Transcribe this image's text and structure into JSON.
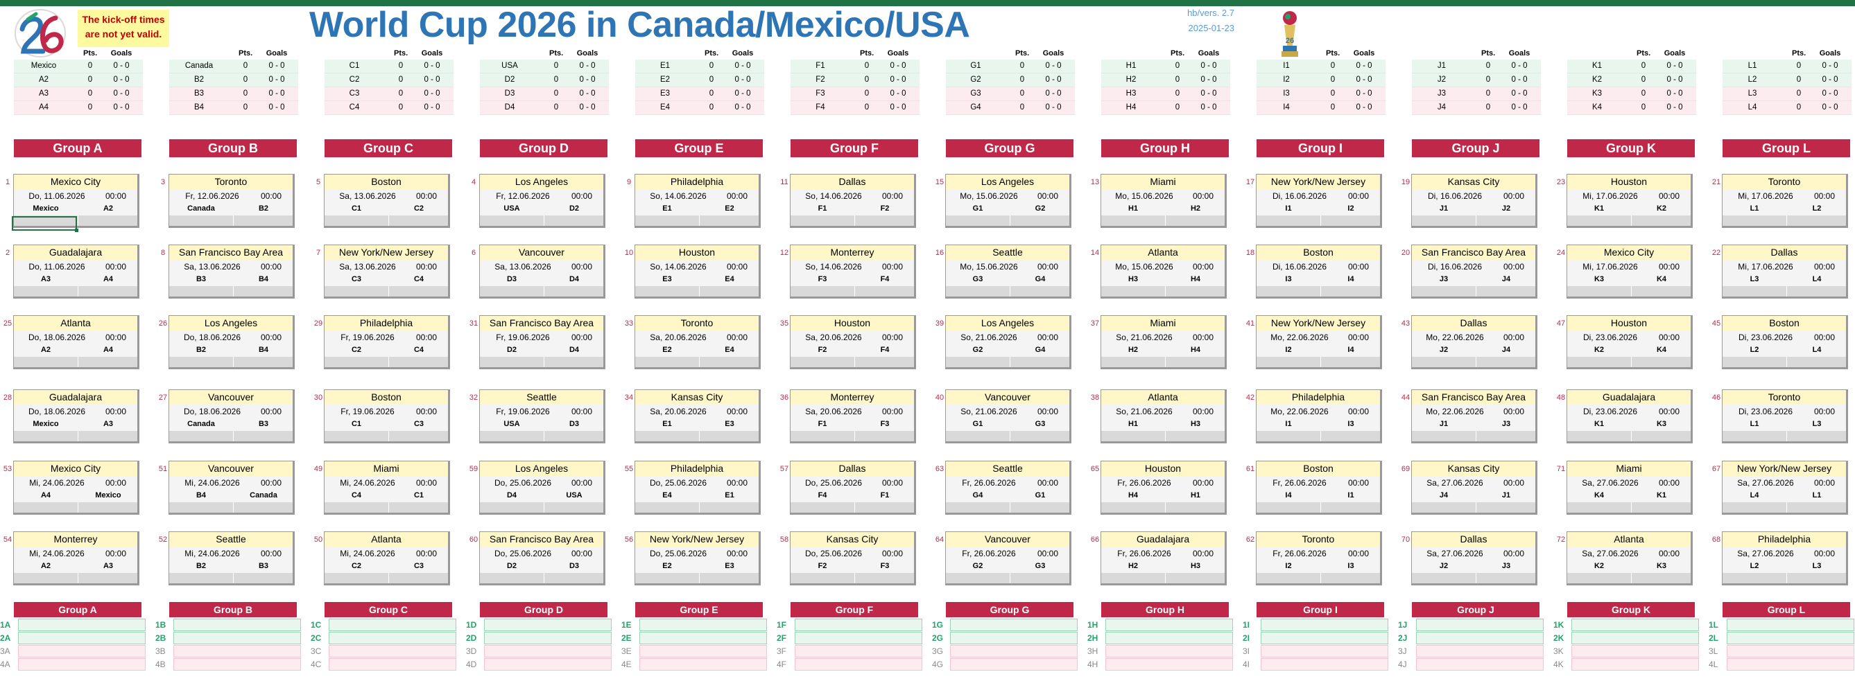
{
  "header": {
    "title": "World Cup 2026 in Canada/Mexico/USA",
    "note_line1": "The kick-off times",
    "note_line2": "are not yet valid.",
    "version": "hb/vers. 2.7",
    "version_date": "2025-01-23",
    "logo_icon": "wc26-logo-icon",
    "trophy_icon": "trophy-icon"
  },
  "columns": {
    "pts": "Pts.",
    "goals": "Goals"
  },
  "colors": {
    "accent": "#c0284a",
    "title": "#2e75b6",
    "venue_bg": "#fff7c7",
    "qualified": "#22a36b"
  },
  "groups": [
    {
      "name": "Group A",
      "teams": [
        "Mexico",
        "A2",
        "A3",
        "A4"
      ],
      "pts": [
        "0",
        "0",
        "0",
        "0"
      ],
      "goals": [
        "0 - 0",
        "0 - 0",
        "0 - 0",
        "0 - 0"
      ],
      "matches": [
        {
          "num": "1",
          "venue": "Mexico City",
          "date": "Do, 11.06.2026",
          "time": "00:00",
          "home": "Mexico",
          "away": "A2"
        },
        {
          "num": "2",
          "venue": "Guadalajara",
          "date": "Do, 11.06.2026",
          "time": "00:00",
          "home": "A3",
          "away": "A4"
        },
        {
          "num": "25",
          "venue": "Atlanta",
          "date": "Do, 18.06.2026",
          "time": "00:00",
          "home": "A2",
          "away": "A4"
        },
        {
          "num": "28",
          "venue": "Guadalajara",
          "date": "Do, 18.06.2026",
          "time": "00:00",
          "home": "Mexico",
          "away": "A3"
        },
        {
          "num": "53",
          "venue": "Mexico City",
          "date": "Mi, 24.06.2026",
          "time": "00:00",
          "home": "A4",
          "away": "Mexico"
        },
        {
          "num": "54",
          "venue": "Monterrey",
          "date": "Mi, 24.06.2026",
          "time": "00:00",
          "home": "A2",
          "away": "A3"
        }
      ],
      "final": [
        "1A",
        "2A",
        "3A",
        "4A"
      ]
    },
    {
      "name": "Group B",
      "teams": [
        "Canada",
        "B2",
        "B3",
        "B4"
      ],
      "pts": [
        "0",
        "0",
        "0",
        "0"
      ],
      "goals": [
        "0 - 0",
        "0 - 0",
        "0 - 0",
        "0 - 0"
      ],
      "matches": [
        {
          "num": "3",
          "venue": "Toronto",
          "date": "Fr, 12.06.2026",
          "time": "00:00",
          "home": "Canada",
          "away": "B2"
        },
        {
          "num": "8",
          "venue": "San Francisco Bay Area",
          "date": "Sa, 13.06.2026",
          "time": "00:00",
          "home": "B3",
          "away": "B4"
        },
        {
          "num": "26",
          "venue": "Los Angeles",
          "date": "Do, 18.06.2026",
          "time": "00:00",
          "home": "B2",
          "away": "B4"
        },
        {
          "num": "27",
          "venue": "Vancouver",
          "date": "Do, 18.06.2026",
          "time": "00:00",
          "home": "Canada",
          "away": "B3"
        },
        {
          "num": "51",
          "venue": "Vancouver",
          "date": "Mi, 24.06.2026",
          "time": "00:00",
          "home": "B4",
          "away": "Canada"
        },
        {
          "num": "52",
          "venue": "Seattle",
          "date": "Mi, 24.06.2026",
          "time": "00:00",
          "home": "B2",
          "away": "B3"
        }
      ],
      "final": [
        "1B",
        "2B",
        "3B",
        "4B"
      ]
    },
    {
      "name": "Group C",
      "teams": [
        "C1",
        "C2",
        "C3",
        "C4"
      ],
      "pts": [
        "0",
        "0",
        "0",
        "0"
      ],
      "goals": [
        "0 - 0",
        "0 - 0",
        "0 - 0",
        "0 - 0"
      ],
      "matches": [
        {
          "num": "5",
          "venue": "Boston",
          "date": "Sa, 13.06.2026",
          "time": "00:00",
          "home": "C1",
          "away": "C2"
        },
        {
          "num": "7",
          "venue": "New York/New Jersey",
          "date": "Sa, 13.06.2026",
          "time": "00:00",
          "home": "C3",
          "away": "C4"
        },
        {
          "num": "29",
          "venue": "Philadelphia",
          "date": "Fr, 19.06.2026",
          "time": "00:00",
          "home": "C2",
          "away": "C4"
        },
        {
          "num": "30",
          "venue": "Boston",
          "date": "Fr, 19.06.2026",
          "time": "00:00",
          "home": "C1",
          "away": "C3"
        },
        {
          "num": "49",
          "venue": "Miami",
          "date": "Mi, 24.06.2026",
          "time": "00:00",
          "home": "C4",
          "away": "C1"
        },
        {
          "num": "50",
          "venue": "Atlanta",
          "date": "Mi, 24.06.2026",
          "time": "00:00",
          "home": "C2",
          "away": "C3"
        }
      ],
      "final": [
        "1C",
        "2C",
        "3C",
        "4C"
      ]
    },
    {
      "name": "Group D",
      "teams": [
        "USA",
        "D2",
        "D3",
        "D4"
      ],
      "pts": [
        "0",
        "0",
        "0",
        "0"
      ],
      "goals": [
        "0 - 0",
        "0 - 0",
        "0 - 0",
        "0 - 0"
      ],
      "matches": [
        {
          "num": "4",
          "venue": "Los Angeles",
          "date": "Fr, 12.06.2026",
          "time": "00:00",
          "home": "USA",
          "away": "D2"
        },
        {
          "num": "6",
          "venue": "Vancouver",
          "date": "Sa, 13.06.2026",
          "time": "00:00",
          "home": "D3",
          "away": "D4"
        },
        {
          "num": "31",
          "venue": "San Francisco Bay Area",
          "date": "Fr, 19.06.2026",
          "time": "00:00",
          "home": "D2",
          "away": "D4"
        },
        {
          "num": "32",
          "venue": "Seattle",
          "date": "Fr, 19.06.2026",
          "time": "00:00",
          "home": "USA",
          "away": "D3"
        },
        {
          "num": "59",
          "venue": "Los Angeles",
          "date": "Do, 25.06.2026",
          "time": "00:00",
          "home": "D4",
          "away": "USA"
        },
        {
          "num": "60",
          "venue": "San Francisco Bay Area",
          "date": "Do, 25.06.2026",
          "time": "00:00",
          "home": "D2",
          "away": "D3"
        }
      ],
      "final": [
        "1D",
        "2D",
        "3D",
        "4D"
      ]
    },
    {
      "name": "Group E",
      "teams": [
        "E1",
        "E2",
        "E3",
        "E4"
      ],
      "pts": [
        "0",
        "0",
        "0",
        "0"
      ],
      "goals": [
        "0 - 0",
        "0 - 0",
        "0 - 0",
        "0 - 0"
      ],
      "matches": [
        {
          "num": "9",
          "venue": "Philadelphia",
          "date": "So, 14.06.2026",
          "time": "00:00",
          "home": "E1",
          "away": "E2"
        },
        {
          "num": "10",
          "venue": "Houston",
          "date": "So, 14.06.2026",
          "time": "00:00",
          "home": "E3",
          "away": "E4"
        },
        {
          "num": "33",
          "venue": "Toronto",
          "date": "Sa, 20.06.2026",
          "time": "00:00",
          "home": "E2",
          "away": "E4"
        },
        {
          "num": "34",
          "venue": "Kansas City",
          "date": "Sa, 20.06.2026",
          "time": "00:00",
          "home": "E1",
          "away": "E3"
        },
        {
          "num": "55",
          "venue": "Philadelphia",
          "date": "Do, 25.06.2026",
          "time": "00:00",
          "home": "E4",
          "away": "E1"
        },
        {
          "num": "56",
          "venue": "New York/New Jersey",
          "date": "Do, 25.06.2026",
          "time": "00:00",
          "home": "E2",
          "away": "E3"
        }
      ],
      "final": [
        "1E",
        "2E",
        "3E",
        "4E"
      ]
    },
    {
      "name": "Group F",
      "teams": [
        "F1",
        "F2",
        "F3",
        "F4"
      ],
      "pts": [
        "0",
        "0",
        "0",
        "0"
      ],
      "goals": [
        "0 - 0",
        "0 - 0",
        "0 - 0",
        "0 - 0"
      ],
      "matches": [
        {
          "num": "11",
          "venue": "Dallas",
          "date": "So, 14.06.2026",
          "time": "00:00",
          "home": "F1",
          "away": "F2"
        },
        {
          "num": "12",
          "venue": "Monterrey",
          "date": "So, 14.06.2026",
          "time": "00:00",
          "home": "F3",
          "away": "F4"
        },
        {
          "num": "35",
          "venue": "Houston",
          "date": "Sa, 20.06.2026",
          "time": "00:00",
          "home": "F2",
          "away": "F4"
        },
        {
          "num": "36",
          "venue": "Monterrey",
          "date": "Sa, 20.06.2026",
          "time": "00:00",
          "home": "F1",
          "away": "F3"
        },
        {
          "num": "57",
          "venue": "Dallas",
          "date": "Do, 25.06.2026",
          "time": "00:00",
          "home": "F4",
          "away": "F1"
        },
        {
          "num": "58",
          "venue": "Kansas City",
          "date": "Do, 25.06.2026",
          "time": "00:00",
          "home": "F2",
          "away": "F3"
        }
      ],
      "final": [
        "1F",
        "2F",
        "3F",
        "4F"
      ]
    },
    {
      "name": "Group G",
      "teams": [
        "G1",
        "G2",
        "G3",
        "G4"
      ],
      "pts": [
        "0",
        "0",
        "0",
        "0"
      ],
      "goals": [
        "0 - 0",
        "0 - 0",
        "0 - 0",
        "0 - 0"
      ],
      "matches": [
        {
          "num": "15",
          "venue": "Los Angeles",
          "date": "Mo, 15.06.2026",
          "time": "00:00",
          "home": "G1",
          "away": "G2"
        },
        {
          "num": "16",
          "venue": "Seattle",
          "date": "Mo, 15.06.2026",
          "time": "00:00",
          "home": "G3",
          "away": "G4"
        },
        {
          "num": "39",
          "venue": "Los Angeles",
          "date": "So, 21.06.2026",
          "time": "00:00",
          "home": "G2",
          "away": "G4"
        },
        {
          "num": "40",
          "venue": "Vancouver",
          "date": "So, 21.06.2026",
          "time": "00:00",
          "home": "G1",
          "away": "G3"
        },
        {
          "num": "63",
          "venue": "Seattle",
          "date": "Fr, 26.06.2026",
          "time": "00:00",
          "home": "G4",
          "away": "G1"
        },
        {
          "num": "64",
          "venue": "Vancouver",
          "date": "Fr, 26.06.2026",
          "time": "00:00",
          "home": "G2",
          "away": "G3"
        }
      ],
      "final": [
        "1G",
        "2G",
        "3G",
        "4G"
      ]
    },
    {
      "name": "Group H",
      "teams": [
        "H1",
        "H2",
        "H3",
        "H4"
      ],
      "pts": [
        "0",
        "0",
        "0",
        "0"
      ],
      "goals": [
        "0 - 0",
        "0 - 0",
        "0 - 0",
        "0 - 0"
      ],
      "matches": [
        {
          "num": "13",
          "venue": "Miami",
          "date": "Mo, 15.06.2026",
          "time": "00:00",
          "home": "H1",
          "away": "H2"
        },
        {
          "num": "14",
          "venue": "Atlanta",
          "date": "Mo, 15.06.2026",
          "time": "00:00",
          "home": "H3",
          "away": "H4"
        },
        {
          "num": "37",
          "venue": "Miami",
          "date": "So, 21.06.2026",
          "time": "00:00",
          "home": "H2",
          "away": "H4"
        },
        {
          "num": "38",
          "venue": "Atlanta",
          "date": "So, 21.06.2026",
          "time": "00:00",
          "home": "H1",
          "away": "H3"
        },
        {
          "num": "65",
          "venue": "Houston",
          "date": "Fr, 26.06.2026",
          "time": "00:00",
          "home": "H4",
          "away": "H1"
        },
        {
          "num": "66",
          "venue": "Guadalajara",
          "date": "Fr, 26.06.2026",
          "time": "00:00",
          "home": "H2",
          "away": "H3"
        }
      ],
      "final": [
        "1H",
        "2H",
        "3H",
        "4H"
      ]
    },
    {
      "name": "Group I",
      "teams": [
        "I1",
        "I2",
        "I3",
        "I4"
      ],
      "pts": [
        "0",
        "0",
        "0",
        "0"
      ],
      "goals": [
        "0 - 0",
        "0 - 0",
        "0 - 0",
        "0 - 0"
      ],
      "matches": [
        {
          "num": "17",
          "venue": "New York/New Jersey",
          "date": "Di, 16.06.2026",
          "time": "00:00",
          "home": "I1",
          "away": "I2"
        },
        {
          "num": "18",
          "venue": "Boston",
          "date": "Di, 16.06.2026",
          "time": "00:00",
          "home": "I3",
          "away": "I4"
        },
        {
          "num": "41",
          "venue": "New York/New Jersey",
          "date": "Mo, 22.06.2026",
          "time": "00:00",
          "home": "I2",
          "away": "I4"
        },
        {
          "num": "42",
          "venue": "Philadelphia",
          "date": "Mo, 22.06.2026",
          "time": "00:00",
          "home": "I1",
          "away": "I3"
        },
        {
          "num": "61",
          "venue": "Boston",
          "date": "Fr, 26.06.2026",
          "time": "00:00",
          "home": "I4",
          "away": "I1"
        },
        {
          "num": "62",
          "venue": "Toronto",
          "date": "Fr, 26.06.2026",
          "time": "00:00",
          "home": "I2",
          "away": "I3"
        }
      ],
      "final": [
        "1I",
        "2I",
        "3I",
        "4I"
      ]
    },
    {
      "name": "Group J",
      "teams": [
        "J1",
        "J2",
        "J3",
        "J4"
      ],
      "pts": [
        "0",
        "0",
        "0",
        "0"
      ],
      "goals": [
        "0 - 0",
        "0 - 0",
        "0 - 0",
        "0 - 0"
      ],
      "matches": [
        {
          "num": "19",
          "venue": "Kansas City",
          "date": "Di, 16.06.2026",
          "time": "00:00",
          "home": "J1",
          "away": "J2"
        },
        {
          "num": "20",
          "venue": "San Francisco Bay Area",
          "date": "Di, 16.06.2026",
          "time": "00:00",
          "home": "J3",
          "away": "J4"
        },
        {
          "num": "43",
          "venue": "Dallas",
          "date": "Mo, 22.06.2026",
          "time": "00:00",
          "home": "J2",
          "away": "J4"
        },
        {
          "num": "44",
          "venue": "San Francisco Bay Area",
          "date": "Mo, 22.06.2026",
          "time": "00:00",
          "home": "J1",
          "away": "J3"
        },
        {
          "num": "69",
          "venue": "Kansas City",
          "date": "Sa, 27.06.2026",
          "time": "00:00",
          "home": "J4",
          "away": "J1"
        },
        {
          "num": "70",
          "venue": "Dallas",
          "date": "Sa, 27.06.2026",
          "time": "00:00",
          "home": "J2",
          "away": "J3"
        }
      ],
      "final": [
        "1J",
        "2J",
        "3J",
        "4J"
      ]
    },
    {
      "name": "Group K",
      "teams": [
        "K1",
        "K2",
        "K3",
        "K4"
      ],
      "pts": [
        "0",
        "0",
        "0",
        "0"
      ],
      "goals": [
        "0 - 0",
        "0 - 0",
        "0 - 0",
        "0 - 0"
      ],
      "matches": [
        {
          "num": "23",
          "venue": "Houston",
          "date": "Mi, 17.06.2026",
          "time": "00:00",
          "home": "K1",
          "away": "K2"
        },
        {
          "num": "24",
          "venue": "Mexico City",
          "date": "Mi, 17.06.2026",
          "time": "00:00",
          "home": "K3",
          "away": "K4"
        },
        {
          "num": "47",
          "venue": "Houston",
          "date": "Di, 23.06.2026",
          "time": "00:00",
          "home": "K2",
          "away": "K4"
        },
        {
          "num": "48",
          "venue": "Guadalajara",
          "date": "Di, 23.06.2026",
          "time": "00:00",
          "home": "K1",
          "away": "K3"
        },
        {
          "num": "71",
          "venue": "Miami",
          "date": "Sa, 27.06.2026",
          "time": "00:00",
          "home": "K4",
          "away": "K1"
        },
        {
          "num": "72",
          "venue": "Atlanta",
          "date": "Sa, 27.06.2026",
          "time": "00:00",
          "home": "K2",
          "away": "K3"
        }
      ],
      "final": [
        "1K",
        "2K",
        "3K",
        "4K"
      ]
    },
    {
      "name": "Group L",
      "teams": [
        "L1",
        "L2",
        "L3",
        "L4"
      ],
      "pts": [
        "0",
        "0",
        "0",
        "0"
      ],
      "goals": [
        "0 - 0",
        "0 - 0",
        "0 - 0",
        "0 - 0"
      ],
      "matches": [
        {
          "num": "21",
          "venue": "Toronto",
          "date": "Mi, 17.06.2026",
          "time": "00:00",
          "home": "L1",
          "away": "L2"
        },
        {
          "num": "22",
          "venue": "Dallas",
          "date": "Mi, 17.06.2026",
          "time": "00:00",
          "home": "L3",
          "away": "L4"
        },
        {
          "num": "45",
          "venue": "Boston",
          "date": "Di, 23.06.2026",
          "time": "00:00",
          "home": "L2",
          "away": "L4"
        },
        {
          "num": "46",
          "venue": "Toronto",
          "date": "Di, 23.06.2026",
          "time": "00:00",
          "home": "L1",
          "away": "L3"
        },
        {
          "num": "67",
          "venue": "New York/New Jersey",
          "date": "Sa, 27.06.2026",
          "time": "00:00",
          "home": "L4",
          "away": "L1"
        },
        {
          "num": "68",
          "venue": "Philadelphia",
          "date": "Sa, 27.06.2026",
          "time": "00:00",
          "home": "L2",
          "away": "L3"
        }
      ],
      "final": [
        "1L",
        "2L",
        "3L",
        "4L"
      ]
    }
  ]
}
